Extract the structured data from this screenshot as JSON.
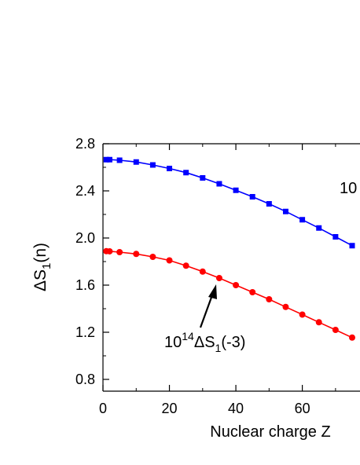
{
  "chart_data": {
    "type": "line",
    "xlabel": "Nuclear charge Z",
    "ylabel": {
      "main": "ΔS",
      "sub": "1",
      "tail": "(n)"
    },
    "xlim": [
      0,
      76
    ],
    "ylim": [
      0.7,
      2.8
    ],
    "x_ticks": [
      0,
      20,
      40,
      60
    ],
    "x_tick_labels": [
      "0",
      "20",
      "40",
      "60"
    ],
    "y_ticks": [
      0.8,
      1.2,
      1.6,
      2.0,
      2.4,
      2.8
    ],
    "y_tick_labels": [
      "0.8",
      "1.2",
      "1.6",
      "2.0",
      "2.4",
      "2.8"
    ],
    "series": [
      {
        "color": "#0000ff",
        "marker": "square",
        "x": [
          1,
          2,
          5,
          10,
          15,
          20,
          25,
          30,
          35,
          40,
          45,
          50,
          55,
          60,
          65,
          70,
          75
        ],
        "values": [
          2.665,
          2.665,
          2.66,
          2.645,
          2.62,
          2.59,
          2.555,
          2.51,
          2.46,
          2.405,
          2.35,
          2.29,
          2.225,
          2.155,
          2.085,
          2.01,
          1.935
        ]
      },
      {
        "color": "#ff0000",
        "marker": "circle",
        "x": [
          1,
          2,
          5,
          10,
          15,
          20,
          25,
          30,
          35,
          40,
          45,
          50,
          55,
          60,
          65,
          70,
          75
        ],
        "values": [
          1.888,
          1.887,
          1.88,
          1.865,
          1.84,
          1.81,
          1.765,
          1.715,
          1.66,
          1.6,
          1.54,
          1.48,
          1.415,
          1.35,
          1.285,
          1.22,
          1.155
        ]
      }
    ],
    "annotations": [
      {
        "text_base": "10",
        "text_exp": "14",
        "text_main": "ΔS",
        "text_sub": "1",
        "text_tail": "(-3)",
        "arrow_to_x": 35,
        "arrow_to_y": 1.66
      },
      {
        "text": "10"
      }
    ]
  }
}
